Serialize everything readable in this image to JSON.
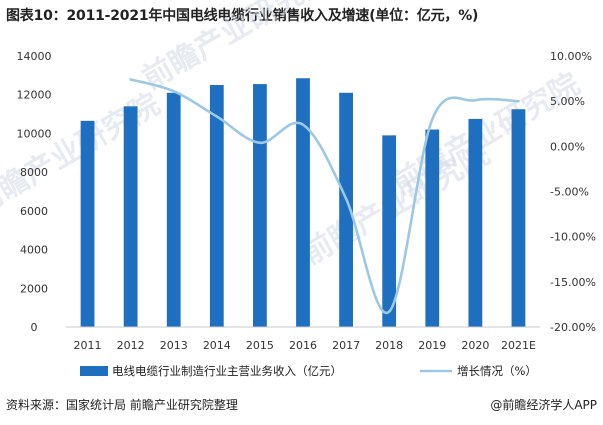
{
  "chart_data": {
    "type": "bar",
    "title": "图表10：2011-2021年中国电线电缆行业销售收入及增速(单位：亿元，%)",
    "categories": [
      "2011",
      "2012",
      "2013",
      "2014",
      "2015",
      "2016",
      "2017",
      "2018",
      "2019",
      "2020",
      "2021E"
    ],
    "series": [
      {
        "name": "电线电缆行业制造行业主营业务收入（亿元）",
        "type": "bar",
        "axis": "left",
        "color": "#1f6fc0",
        "values": [
          10650,
          11400,
          12100,
          12500,
          12550,
          12850,
          12100,
          9900,
          10200,
          10750,
          11250
        ]
      },
      {
        "name": "增长情况（%）",
        "type": "line",
        "axis": "right",
        "color": "#9cc8e6",
        "values": [
          null,
          7.4,
          6.1,
          3.3,
          0.4,
          2.4,
          -5.8,
          -18.3,
          3.0,
          5.1,
          5.0
        ]
      }
    ],
    "y_left": {
      "ylim": [
        0,
        14000
      ],
      "ticks": [
        "0",
        "2000",
        "4000",
        "6000",
        "8000",
        "10000",
        "12000",
        "14000"
      ]
    },
    "y_right": {
      "ylim": [
        -20,
        10
      ],
      "ticks": [
        "10.00%",
        "5.00%",
        "0.00%",
        "-5.00%",
        "-10.00%",
        "-15.00%",
        "-20.00%"
      ]
    },
    "legend_position": "bottom",
    "grid": false
  },
  "watermark": "前瞻产业研究院",
  "footer": {
    "source": "资料来源：国家统计局 前瞻产业研究院整理",
    "brand": "@前瞻经济学人APP"
  }
}
